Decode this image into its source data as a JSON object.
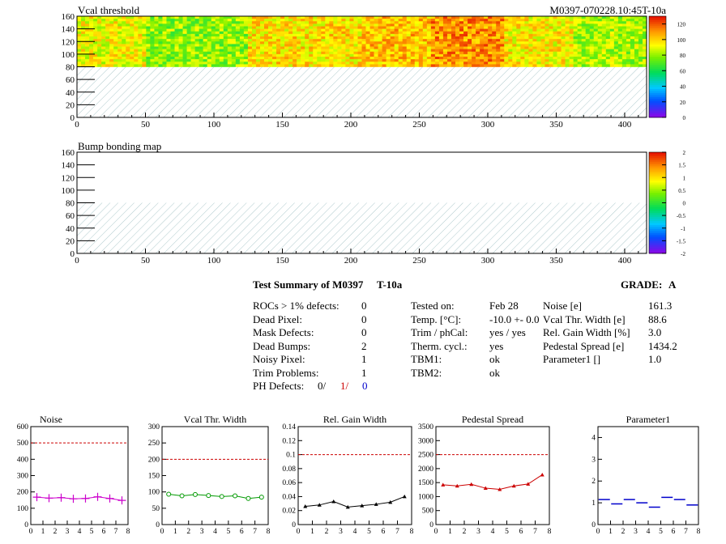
{
  "maps": {
    "vcal": {
      "title": "Vcal threshold",
      "run_id": "M0397-070228.10:45T-10a",
      "x_ticks": [
        "0",
        "50",
        "100",
        "150",
        "200",
        "250",
        "300",
        "350",
        "400"
      ],
      "y_ticks": [
        "0",
        "20",
        "40",
        "60",
        "80",
        "100",
        "120",
        "140",
        "160"
      ],
      "palette_ticks": [
        "0",
        "20",
        "40",
        "60",
        "80",
        "100",
        "120"
      ]
    },
    "bump": {
      "title": "Bump bonding map",
      "x_ticks": [
        "0",
        "50",
        "100",
        "150",
        "200",
        "250",
        "300",
        "350",
        "400"
      ],
      "y_ticks": [
        "0",
        "20",
        "40",
        "60",
        "80",
        "100",
        "120",
        "140",
        "160"
      ],
      "palette_ticks": [
        "-2",
        "-1.5",
        "-1",
        "-0.5",
        "0",
        "0.5",
        "1",
        "1.5",
        "2"
      ]
    }
  },
  "summary": {
    "title": "Test Summary of M0397",
    "temp_label": "T-10a",
    "grade_label": "GRADE:",
    "grade": "A",
    "col1": [
      {
        "label": "ROCs > 1% defects:",
        "value": "0"
      },
      {
        "label": "Dead Pixel:",
        "value": "0"
      },
      {
        "label": "Mask Defects:",
        "value": "0"
      },
      {
        "label": "Dead Bumps:",
        "value": "2"
      },
      {
        "label": "Noisy Pixel:",
        "value": "1"
      },
      {
        "label": "Trim Problems:",
        "value": "1"
      }
    ],
    "ph_label": "PH Defects:",
    "ph_values": [
      "0/",
      "1/",
      "0"
    ],
    "ph_colors": [
      "#000000",
      "#cc0000",
      "#0000cc"
    ],
    "col2": [
      {
        "label": "Tested on:",
        "value": "Feb 28"
      },
      {
        "label": "Temp. [°C]:",
        "value": "-10.0 +- 0.0"
      },
      {
        "label": "Trim / phCal:",
        "value": "yes / yes"
      },
      {
        "label": "Therm. cycl.:",
        "value": "yes"
      },
      {
        "label": "TBM1:",
        "value": "ok"
      },
      {
        "label": "TBM2:",
        "value": "ok"
      }
    ],
    "col3": [
      {
        "label": "Noise [e]",
        "value": "161.3"
      },
      {
        "label": "Vcal Thr. Width [e]",
        "value": "88.6"
      },
      {
        "label": "Rel. Gain Width [%]",
        "value": "3.0"
      },
      {
        "label": "Pedestal Spread [e]",
        "value": "1434.2"
      },
      {
        "label": "Parameter1 []",
        "value": "1.0"
      }
    ]
  },
  "chart_data": [
    {
      "type": "line",
      "title": "Noise",
      "x": [
        0.5,
        1.5,
        2.5,
        3.5,
        4.5,
        5.5,
        6.5,
        7.5
      ],
      "values": [
        168,
        162,
        165,
        158,
        160,
        170,
        160,
        148
      ],
      "ylim": [
        0,
        600
      ],
      "yticks": [
        "0",
        "100",
        "200",
        "300",
        "400",
        "500",
        "600"
      ],
      "xlim": [
        0,
        8
      ],
      "xticks": [
        "0",
        "1",
        "2",
        "3",
        "4",
        "5",
        "6",
        "7",
        "8"
      ],
      "limit": 500,
      "marker": "cross",
      "color": "#cc00cc"
    },
    {
      "type": "line",
      "title": "Vcal Thr. Width",
      "x": [
        0.5,
        1.5,
        2.5,
        3.5,
        4.5,
        5.5,
        6.5,
        7.5
      ],
      "values": [
        93,
        88,
        92,
        89,
        86,
        88,
        80,
        84
      ],
      "ylim": [
        0,
        300
      ],
      "yticks": [
        "0",
        "50",
        "100",
        "150",
        "200",
        "250",
        "300"
      ],
      "xlim": [
        0,
        8
      ],
      "xticks": [
        "0",
        "1",
        "2",
        "3",
        "4",
        "5",
        "6",
        "7",
        "8"
      ],
      "limit": 200,
      "marker": "circle",
      "color": "#009900"
    },
    {
      "type": "line",
      "title": "Rel. Gain Width",
      "x": [
        0.5,
        1.5,
        2.5,
        3.5,
        4.5,
        5.5,
        6.5,
        7.5
      ],
      "values": [
        0.026,
        0.028,
        0.033,
        0.025,
        0.027,
        0.029,
        0.032,
        0.04
      ],
      "ylim": [
        0,
        0.14
      ],
      "yticks": [
        "0",
        "0.02",
        "0.04",
        "0.06",
        "0.08",
        "0.1",
        "0.12",
        "0.14"
      ],
      "xlim": [
        0,
        8
      ],
      "xticks": [
        "0",
        "1",
        "2",
        "3",
        "4",
        "5",
        "6",
        "7",
        "8"
      ],
      "limit": 0.1,
      "marker": "triangle",
      "color": "#000000"
    },
    {
      "type": "line",
      "title": "Pedestal Spread",
      "x": [
        0.5,
        1.5,
        2.5,
        3.5,
        4.5,
        5.5,
        6.5,
        7.5
      ],
      "values": [
        1420,
        1380,
        1440,
        1300,
        1260,
        1380,
        1450,
        1780
      ],
      "ylim": [
        0,
        3500
      ],
      "yticks": [
        "0",
        "500",
        "1000",
        "1500",
        "2000",
        "2500",
        "3000",
        "3500"
      ],
      "xlim": [
        0,
        8
      ],
      "xticks": [
        "0",
        "1",
        "2",
        "3",
        "4",
        "5",
        "6",
        "7",
        "8"
      ],
      "limit": 2500,
      "marker": "triangle",
      "color": "#cc0000"
    },
    {
      "type": "line",
      "title": "Parameter1",
      "x": [
        0.5,
        1.5,
        2.5,
        3.5,
        4.5,
        5.5,
        6.5,
        7.5
      ],
      "values": [
        1.15,
        0.95,
        1.15,
        1.0,
        0.8,
        1.25,
        1.15,
        0.9
      ],
      "ylim": [
        0,
        4.5
      ],
      "yticks": [
        "0",
        "1",
        "2",
        "3",
        "4"
      ],
      "xlim": [
        0,
        8
      ],
      "xticks": [
        "0",
        "1",
        "2",
        "3",
        "4",
        "5",
        "6",
        "7",
        "8"
      ],
      "limit": null,
      "marker": "hbar",
      "color": "#0000cc"
    }
  ]
}
